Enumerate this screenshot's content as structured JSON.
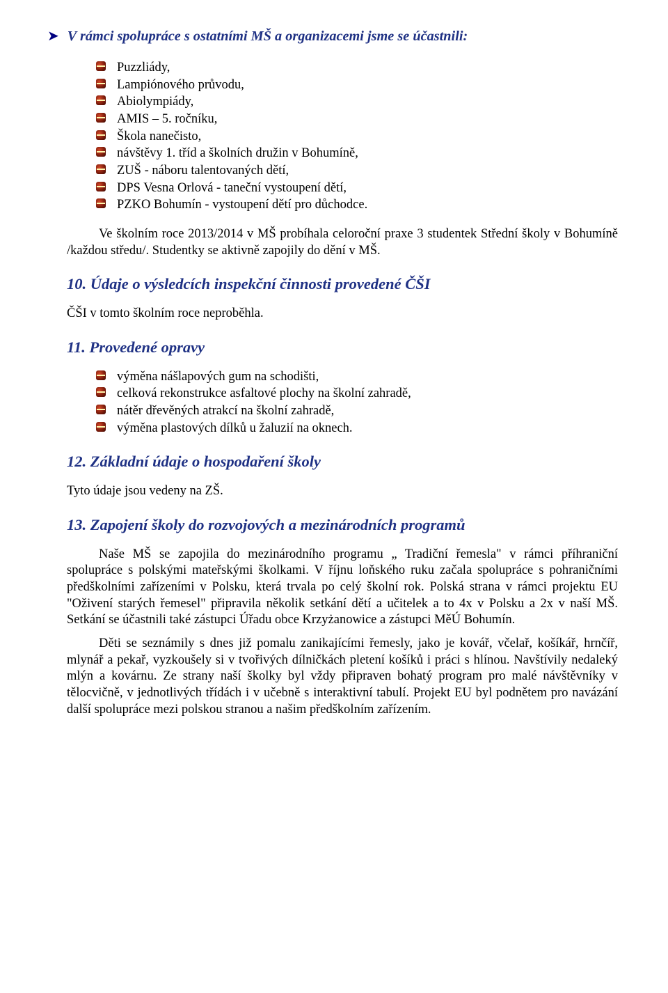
{
  "colors": {
    "text": "#000000",
    "heading": "#1f3184",
    "chevron": "#000080",
    "page_bg": "#ffffff"
  },
  "topHeading": "V rámci spolupráce s ostatními MŠ a organizacemi jsme se účastnili:",
  "list1": [
    "Puzzliády,",
    "Lampiónového průvodu,",
    "Abiolympiády,",
    "AMIS – 5. ročníku,",
    "Škola nanečisto,",
    "návštěvy 1. tříd a školních družin v Bohumíně,",
    "ZUŠ - náboru talentovaných dětí,",
    "DPS Vesna Orlová - taneční vystoupení dětí,",
    "PZKO Bohumín - vystoupení dětí pro důchodce."
  ],
  "para1": "Ve školním roce 2013/2014 v MŠ probíhala celoroční praxe 3 studentek Střední školy v Bohumíně /každou středu/. Studentky se aktivně zapojily do dění v MŠ.",
  "h10": "10. Údaje o výsledcích inspekční činnosti provedené ČŠI",
  "para2": "ČŠI v tomto školním roce neproběhla.",
  "h11": "11. Provedené opravy",
  "list2": [
    "výměna nášlapových gum na schodišti,",
    "celková rekonstrukce asfaltové plochy na školní zahradě,",
    "nátěr dřevěných atrakcí na školní zahradě,",
    "výměna plastových dílků u žaluzií na oknech."
  ],
  "h12": "12. Základní údaje o hospodaření školy",
  "para3": "Tyto údaje jsou vedeny na ZŠ.",
  "h13": "13. Zapojení školy do rozvojových a mezinárodních programů",
  "para4": "Naše MŠ se zapojila do mezinárodního programu „ Tradiční řemesla\" v rámci příhraniční spolupráce s polskými mateřskými školkami. V říjnu loňského ruku začala spolupráce s pohraničními předškolními zařízeními v Polsku, která trvala po celý školní rok. Polská strana v rámci projektu EU \"Oživení starých řemesel\" připravila několik setkání dětí a učitelek a to 4x v Polsku a 2x v naší MŠ. Setkání se účastnili také zástupci Úřadu obce Krzyżanowice a zástupci MěÚ Bohumín.",
  "para5": "Děti se seznámily s dnes již pomalu zanikajícími řemesly, jako je kovář, včelař, košíkář, hrnčíř, mlynář a pekař, vyzkoušely si v tvořivých dílničkách pletení košíků i práci s hlínou. Navštívily nedaleký mlýn a kovárnu. Ze strany naší školky byl vždy připraven bohatý program pro malé návštěvníky v tělocvičně, v jednotlivých třídách i v učebně s interaktivní tabulí. Projekt EU byl podnětem pro navázání další spolupráce mezi polskou stranou a našim předškolním zařízením."
}
